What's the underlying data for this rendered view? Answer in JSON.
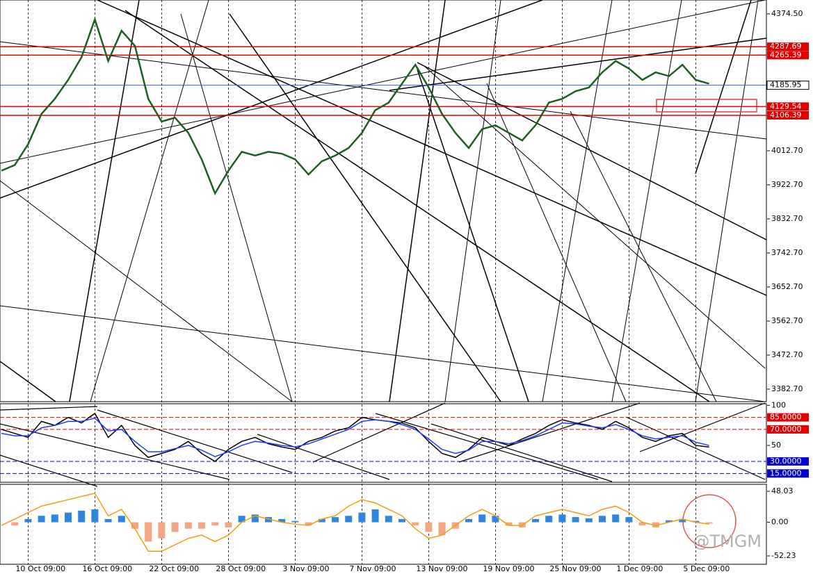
{
  "chart_data": [
    {
      "type": "line",
      "panel": "main",
      "categories": [
        null,
        null,
        "10 Oct 09:00",
        null,
        null,
        null,
        null,
        "16 Oct 09:00",
        null,
        null,
        null,
        null,
        "22 Oct 09:00",
        null,
        null,
        null,
        null,
        "28 Oct 09:00",
        null,
        null,
        null,
        null,
        "3 Nov 09:00",
        null,
        null,
        null,
        null,
        "7 Nov 09:00",
        null,
        null,
        null,
        null,
        "13 Nov 09:00",
        null,
        null,
        null,
        null,
        "19 Nov 09:00",
        null,
        null,
        null,
        null,
        "25 Nov 09:00",
        null,
        null,
        null,
        null,
        "1 Dec 09:00",
        null,
        null,
        null,
        null,
        "5 Dec 09:00",
        null
      ],
      "series": [
        {
          "color": "#1b5e20",
          "values": [
            3960,
            3975,
            4030,
            4110,
            4150,
            4200,
            4260,
            4360,
            4250,
            4330,
            4290,
            4150,
            4090,
            4100,
            4060,
            3990,
            3900,
            3960,
            4010,
            4000,
            4010,
            4005,
            3990,
            3950,
            3985,
            4000,
            4020,
            4060,
            4120,
            4140,
            4190,
            4240,
            4180,
            4110,
            4060,
            4020,
            4070,
            4080,
            4060,
            4040,
            4080,
            4140,
            4150,
            4170,
            4180,
            4220,
            4250,
            4230,
            4200,
            4220,
            4210,
            4240,
            4200,
            4190
          ]
        }
      ],
      "ylim": [
        3349.6,
        4411.2
      ],
      "yticks": [
        {
          "value": 4374.5,
          "label": "4374.50"
        },
        {
          "value": 4012.7,
          "label": "4012.70"
        },
        {
          "value": 3922.7,
          "label": "3922.70"
        },
        {
          "value": 3832.7,
          "label": "3832.70"
        },
        {
          "value": 3742.7,
          "label": "3742.70"
        },
        {
          "value": 3652.7,
          "label": "3652.70"
        },
        {
          "value": 3562.7,
          "label": "3562.70"
        },
        {
          "value": 3472.7,
          "label": "3472.70"
        },
        {
          "value": 3382.7,
          "label": "3382.70"
        }
      ],
      "levels": [
        {
          "value": 4287.69,
          "color": "#e00000"
        },
        {
          "value": 4265.39,
          "color": "#e00000"
        },
        {
          "value": 4185.95,
          "color": "#3060d0"
        },
        {
          "value": 4129.54,
          "color": "#e00000"
        },
        {
          "value": 4106.39,
          "color": "#e00000"
        }
      ]
    },
    {
      "type": "line",
      "panel": "osc",
      "series": [
        {
          "color": "#000000",
          "values": [
            70,
            65,
            60,
            80,
            75,
            85,
            78,
            90,
            60,
            75,
            50,
            35,
            40,
            45,
            55,
            40,
            30,
            45,
            55,
            60,
            52,
            48,
            45,
            55,
            60,
            68,
            72,
            85,
            82,
            80,
            78,
            72,
            55,
            40,
            35,
            45,
            60,
            55,
            50,
            58,
            65,
            75,
            82,
            78,
            75,
            70,
            80,
            72,
            60,
            55,
            62,
            65,
            50,
            48
          ]
        },
        {
          "color": "#1e3cff",
          "values": [
            65,
            62,
            62,
            72,
            75,
            80,
            80,
            84,
            68,
            70,
            55,
            42,
            42,
            46,
            50,
            44,
            36,
            42,
            50,
            55,
            53,
            50,
            48,
            52,
            58,
            64,
            70,
            80,
            82,
            80,
            76,
            70,
            58,
            45,
            40,
            44,
            55,
            55,
            52,
            56,
            62,
            70,
            78,
            77,
            74,
            72,
            76,
            70,
            62,
            58,
            60,
            62,
            54,
            50
          ]
        }
      ],
      "ylim": [
        4,
        102
      ],
      "yticks": [
        100,
        50
      ],
      "levels": [
        {
          "value": 85,
          "label": "85.0000",
          "color": "#e00000"
        },
        {
          "value": 70,
          "label": "70.0000",
          "color": "#e00000"
        },
        {
          "value": 30,
          "label": "30.0000",
          "color": "#0000cc"
        },
        {
          "value": 15,
          "label": "15.0000",
          "color": "#0000cc"
        }
      ]
    },
    {
      "type": "combo",
      "panel": "macd",
      "values": [
        0,
        -5,
        5,
        10,
        12,
        15,
        18,
        20,
        5,
        10,
        -10,
        -30,
        -25,
        -15,
        -10,
        -10,
        -5,
        -8,
        10,
        12,
        8,
        5,
        2,
        -5,
        5,
        8,
        10,
        15,
        20,
        10,
        5,
        -5,
        -15,
        -20,
        -10,
        5,
        12,
        10,
        -5,
        -8,
        5,
        10,
        12,
        8,
        6,
        10,
        12,
        8,
        -5,
        -8,
        3,
        5,
        2,
        -2
      ],
      "up_color": "#2e86de",
      "down_color": "#f4a582",
      "series": [
        {
          "color": "#f39c12",
          "values": [
            -5,
            5,
            15,
            25,
            30,
            35,
            40,
            45,
            10,
            20,
            -10,
            -45,
            -45,
            -35,
            -25,
            -20,
            -30,
            -20,
            0,
            10,
            5,
            0,
            -3,
            -5,
            5,
            10,
            25,
            35,
            30,
            20,
            10,
            -10,
            -25,
            -20,
            -5,
            10,
            20,
            10,
            -5,
            -5,
            10,
            15,
            20,
            15,
            10,
            20,
            25,
            15,
            0,
            -5,
            0,
            5,
            0,
            -3
          ]
        }
      ],
      "ylim": [
        -65.2,
        58.8
      ],
      "yticks": [
        48.03,
        {
          "value": 0,
          "label": "0.00"
        },
        -52.23
      ]
    }
  ],
  "watermark": "@TMGM"
}
